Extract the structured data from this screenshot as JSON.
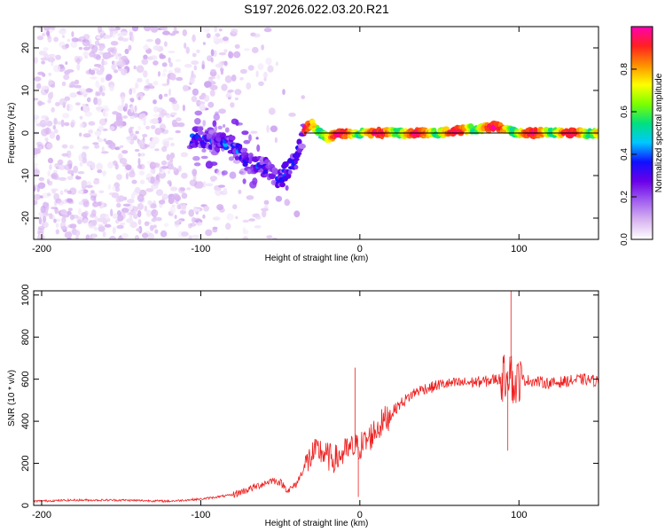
{
  "page_title": "S197.2026.022.03.20.R21",
  "chart_data": [
    {
      "type": "heatmap",
      "title": "S197.2026.022.03.20.R21",
      "xlabel": "Height of straight line (km)",
      "ylabel": "Frequency (Hz)",
      "xlim": [
        -205,
        150
      ],
      "ylim": [
        -25,
        25
      ],
      "xticks": [
        -200,
        -100,
        0,
        100
      ],
      "yticks": [
        20,
        10,
        0,
        -10,
        -20
      ],
      "colormap": [
        "#ffffff",
        "#d8b4f0",
        "#a05ef0",
        "#6a00e8",
        "#1010ff",
        "#00c8ff",
        "#00e080",
        "#7cff00",
        "#ffff00",
        "#ff9000",
        "#ff2020",
        "#ff00b0"
      ],
      "colorbar": {
        "label": "Normalized spectral amplitude",
        "range": [
          0,
          1
        ],
        "ticks": [
          "0.0",
          "0.2",
          "0.4",
          "0.6",
          "0.8"
        ]
      },
      "ridge_x": [
        -100,
        -90,
        -80,
        -70,
        -60,
        -50,
        -40,
        -35,
        -30,
        -25,
        -20,
        -10,
        0,
        20,
        50,
        85,
        100,
        150
      ],
      "ridge_freq": [
        -1,
        -2,
        -3,
        -7,
        -8,
        -11,
        -6,
        1,
        2,
        0,
        -1,
        0,
        0,
        0,
        0,
        1.5,
        0,
        0
      ],
      "zero_reference_line_x_range": [
        -35,
        150
      ]
    },
    {
      "type": "line",
      "title": "",
      "xlabel": "Height of straight line (km)",
      "ylabel": "SNR (10 * v/v)",
      "xlim": [
        -205,
        150
      ],
      "ylim": [
        0,
        1020
      ],
      "xticks": [
        -200,
        -100,
        0,
        100
      ],
      "yticks": [
        0,
        200,
        400,
        600,
        800,
        1000
      ],
      "series": [
        {
          "name": "SNR",
          "color": "#ff2020",
          "x": [
            -205,
            -180,
            -150,
            -120,
            -100,
            -80,
            -65,
            -55,
            -50,
            -45,
            -40,
            -35,
            -30,
            -25,
            -20,
            -15,
            -10,
            -5,
            0,
            5,
            10,
            15,
            20,
            25,
            30,
            35,
            40,
            45,
            50,
            60,
            70,
            80,
            85,
            90,
            94,
            95,
            96,
            100,
            110,
            120,
            130,
            140,
            150
          ],
          "y": [
            20,
            25,
            25,
            20,
            30,
            50,
            90,
            120,
            110,
            70,
            100,
            180,
            240,
            260,
            230,
            220,
            250,
            270,
            280,
            310,
            360,
            400,
            440,
            480,
            510,
            540,
            555,
            560,
            575,
            580,
            585,
            590,
            600,
            600,
            650,
            700,
            550,
            600,
            590,
            580,
            590,
            600,
            590
          ]
        }
      ],
      "spikes": [
        {
          "x": -3,
          "y": 655
        },
        {
          "x": -1,
          "y": 40
        },
        {
          "x": 95,
          "y": 1020
        },
        {
          "x": 93,
          "y": 260
        }
      ]
    }
  ]
}
